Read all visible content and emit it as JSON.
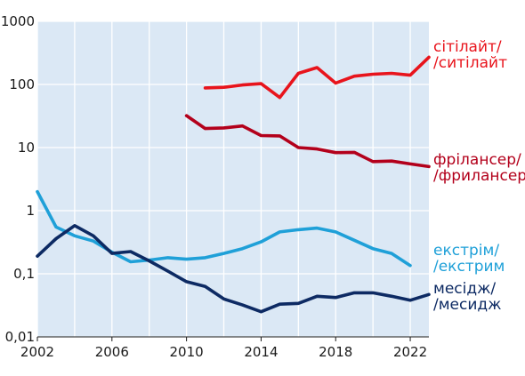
{
  "chart_data": {
    "type": "line",
    "y_scale": "log",
    "ylim": [
      0.01,
      1000
    ],
    "xlim": [
      2002,
      2023
    ],
    "grid": true,
    "legend": "right",
    "background_color": "#dbe8f5",
    "grid_color": "#ffffff",
    "x_ticks": [
      {
        "value": 2002,
        "label": "2002"
      },
      {
        "value": 2006,
        "label": "2006"
      },
      {
        "value": 2010,
        "label": "2010"
      },
      {
        "value": 2014,
        "label": "2014"
      },
      {
        "value": 2018,
        "label": "2018"
      },
      {
        "value": 2022,
        "label": "2022"
      }
    ],
    "y_ticks": [
      {
        "value": 1000,
        "label": "1000"
      },
      {
        "value": 100,
        "label": "100"
      },
      {
        "value": 10,
        "label": "10"
      },
      {
        "value": 1,
        "label": "1"
      },
      {
        "value": 0.1,
        "label": "0,1"
      },
      {
        "value": 0.01,
        "label": "0,01"
      }
    ],
    "series": [
      {
        "key": "citylight",
        "label_lines": [
          "сітілайт/",
          "/ситілайт"
        ],
        "color": "#e8141c",
        "x": [
          2011,
          2012,
          2013,
          2014,
          2015,
          2016,
          2017,
          2018,
          2019,
          2020,
          2021,
          2022,
          2023
        ],
        "values": [
          88,
          90,
          98,
          103,
          62,
          150,
          185,
          105,
          135,
          145,
          150,
          140,
          270
        ]
      },
      {
        "key": "freelancer",
        "label_lines": [
          "фрілансер/",
          "/фрилансер"
        ],
        "color": "#b3001b",
        "x": [
          2010,
          2011,
          2012,
          2013,
          2014,
          2015,
          2016,
          2017,
          2018,
          2019,
          2020,
          2021,
          2022,
          2023
        ],
        "values": [
          32,
          20,
          20.5,
          22,
          15.5,
          15.3,
          10,
          9.5,
          8.3,
          8.4,
          6,
          6.1,
          5.5,
          5
        ]
      },
      {
        "key": "extreme",
        "label_lines": [
          "екстрім/",
          "/екстрим"
        ],
        "color": "#1fa0d8",
        "x": [
          2002,
          2003,
          2004,
          2005,
          2006,
          2007,
          2008,
          2009,
          2010,
          2011,
          2012,
          2013,
          2014,
          2015,
          2016,
          2017,
          2018,
          2019,
          2020,
          2021,
          2022
        ],
        "values": [
          2.0,
          0.55,
          0.4,
          0.33,
          0.22,
          0.155,
          0.165,
          0.18,
          0.17,
          0.18,
          0.21,
          0.25,
          0.32,
          0.46,
          0.5,
          0.53,
          0.46,
          0.34,
          0.25,
          0.21,
          0.135
        ]
      },
      {
        "key": "message",
        "label_lines": [
          "месідж/",
          "/месидж"
        ],
        "color": "#0d2a63",
        "x": [
          2002,
          2003,
          2004,
          2005,
          2006,
          2007,
          2008,
          2009,
          2010,
          2011,
          2012,
          2013,
          2014,
          2015,
          2016,
          2017,
          2018,
          2019,
          2020,
          2021,
          2022,
          2023
        ],
        "values": [
          0.19,
          0.36,
          0.58,
          0.4,
          0.21,
          0.225,
          0.16,
          0.11,
          0.075,
          0.063,
          0.04,
          0.032,
          0.025,
          0.033,
          0.034,
          0.044,
          0.042,
          0.05,
          0.05,
          0.044,
          0.038,
          0.047
        ]
      }
    ]
  }
}
